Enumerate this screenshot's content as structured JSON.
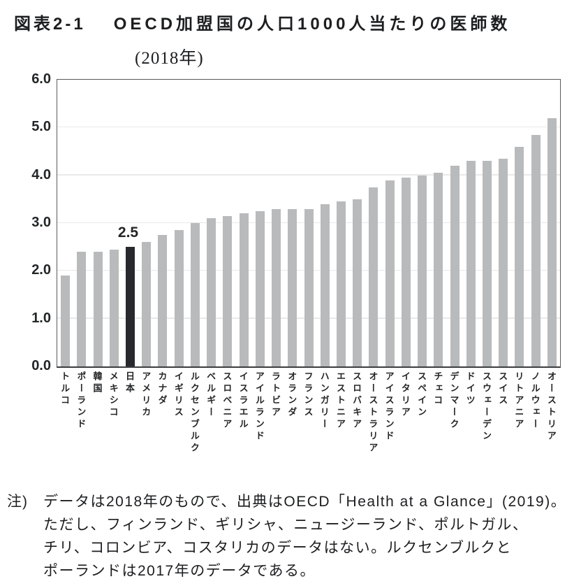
{
  "header": {
    "prefix": "図表2‐1",
    "title": "OECD加盟国の人口1000人当たりの医師数",
    "subtitle": "(2018年)"
  },
  "chart_data": {
    "type": "bar",
    "title": "OECD加盟国の人口1000人当たりの医師数(2018年)",
    "categories": [
      "トルコ",
      "ポーランド",
      "韓国",
      "メキシコ",
      "日本",
      "アメリカ",
      "カナダ",
      "イギリス",
      "ルクセンブルク",
      "ベルギー",
      "スロベニア",
      "イスラエル",
      "アイルランド",
      "ラトビア",
      "オランダ",
      "フランス",
      "ハンガリー",
      "エストニア",
      "スロバキア",
      "オーストラリア",
      "アイスランド",
      "イタリア",
      "スペイン",
      "チェコ",
      "デンマーク",
      "ドイツ",
      "スウェーデン",
      "スイス",
      "リトアニア",
      "ノルウェー",
      "オーストリア"
    ],
    "values": [
      1.9,
      2.4,
      2.4,
      2.45,
      2.5,
      2.6,
      2.75,
      2.85,
      3.0,
      3.1,
      3.15,
      3.2,
      3.25,
      3.3,
      3.3,
      3.3,
      3.4,
      3.45,
      3.5,
      3.75,
      3.9,
      3.95,
      4.0,
      4.05,
      4.2,
      4.3,
      4.3,
      4.35,
      4.6,
      4.85,
      5.2
    ],
    "highlight_index": 4,
    "highlight_label": "2.5",
    "xlabel": "",
    "ylabel": "",
    "ylim": [
      0.0,
      6.0
    ],
    "yticks": [
      "0.0",
      "1.0",
      "2.0",
      "3.0",
      "4.0",
      "5.0",
      "6.0"
    ],
    "grid": true,
    "legend": "none",
    "bar_color": "#b9babc",
    "highlight_color": "#27292e"
  },
  "note": {
    "marker": "注)",
    "lines": [
      "データは2018年のもので、出典はOECD「Health at a Glance」(2019)。",
      "ただし、フィンランド、ギリシャ、ニュージーランド、ポルトガル、",
      "チリ、コロンビア、コスタリカのデータはない。ルクセンブルクと",
      "ポーランドは2017年のデータである。"
    ]
  }
}
